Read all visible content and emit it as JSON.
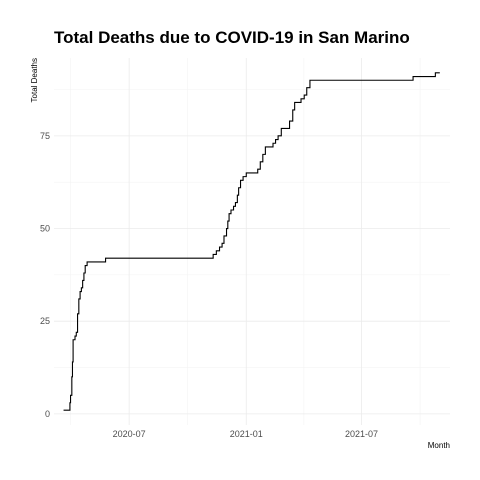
{
  "chart_data": {
    "type": "line",
    "title": "Total Deaths due to COVID-19 in San Marino",
    "xlabel": "Month",
    "ylabel": "Total Deaths",
    "x_ticks": [
      "2020-07",
      "2021-01",
      "2021-07"
    ],
    "y_ticks": [
      0,
      25,
      50,
      75
    ],
    "xlim": [
      "2020-03-05",
      "2021-11-17"
    ],
    "ylim": [
      -3,
      96
    ],
    "grid": true,
    "legend": "none",
    "series": [
      {
        "color": "#000000",
        "step": true,
        "points": [
          [
            "2020-03-20",
            1
          ],
          [
            "2020-03-30",
            3
          ],
          [
            "2020-03-31",
            5
          ],
          [
            "2020-04-02",
            10
          ],
          [
            "2020-04-03",
            14
          ],
          [
            "2020-04-04",
            20
          ],
          [
            "2020-04-07",
            21
          ],
          [
            "2020-04-09",
            22
          ],
          [
            "2020-04-11",
            27
          ],
          [
            "2020-04-13",
            31
          ],
          [
            "2020-04-15",
            33
          ],
          [
            "2020-04-17",
            34
          ],
          [
            "2020-04-19",
            36
          ],
          [
            "2020-04-21",
            38
          ],
          [
            "2020-04-23",
            40
          ],
          [
            "2020-04-26",
            41
          ],
          [
            "2020-05-25",
            42
          ],
          [
            "2020-11-10",
            43
          ],
          [
            "2020-11-15",
            44
          ],
          [
            "2020-11-20",
            45
          ],
          [
            "2020-11-24",
            46
          ],
          [
            "2020-11-27",
            48
          ],
          [
            "2020-12-01",
            50
          ],
          [
            "2020-12-03",
            52
          ],
          [
            "2020-12-05",
            54
          ],
          [
            "2020-12-08",
            55
          ],
          [
            "2020-12-12",
            56
          ],
          [
            "2020-12-15",
            57
          ],
          [
            "2020-12-18",
            59
          ],
          [
            "2020-12-20",
            61
          ],
          [
            "2020-12-23",
            63
          ],
          [
            "2020-12-27",
            64
          ],
          [
            "2021-01-01",
            65
          ],
          [
            "2021-01-19",
            66
          ],
          [
            "2021-01-23",
            68
          ],
          [
            "2021-01-27",
            70
          ],
          [
            "2021-01-31",
            72
          ],
          [
            "2021-02-12",
            73
          ],
          [
            "2021-02-16",
            74
          ],
          [
            "2021-02-20",
            75
          ],
          [
            "2021-02-25",
            77
          ],
          [
            "2021-03-10",
            79
          ],
          [
            "2021-03-15",
            82
          ],
          [
            "2021-03-18",
            84
          ],
          [
            "2021-03-28",
            85
          ],
          [
            "2021-04-02",
            86
          ],
          [
            "2021-04-06",
            88
          ],
          [
            "2021-04-11",
            90
          ],
          [
            "2021-09-20",
            91
          ],
          [
            "2021-10-25",
            92
          ],
          [
            "2021-11-01",
            92
          ]
        ]
      }
    ]
  }
}
